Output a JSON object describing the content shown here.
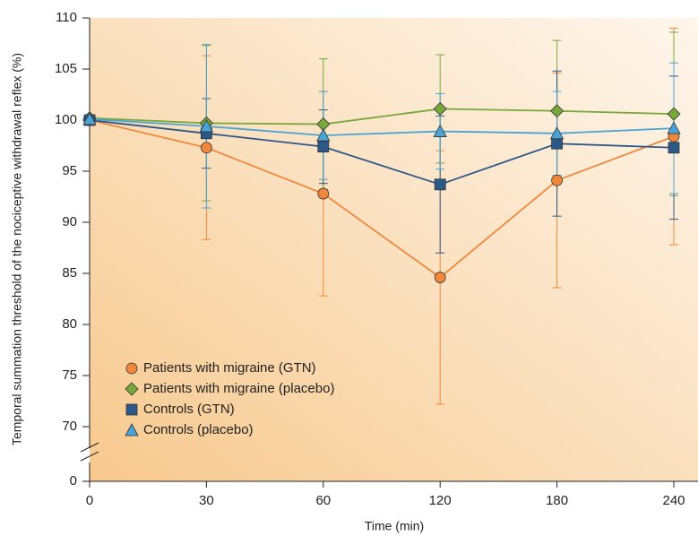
{
  "chart_data": {
    "type": "line",
    "categories": [
      0,
      30,
      60,
      120,
      180,
      240
    ],
    "x_label": "Time (min)",
    "y_label": "Temporal summation threshold of the nociceptive withdrawal reflex (%)",
    "ylim": [
      0,
      110
    ],
    "ybreak": [
      0,
      70
    ],
    "yticks": [
      0,
      70,
      75,
      80,
      85,
      90,
      95,
      100,
      105,
      110
    ],
    "legend": "lower left",
    "series": [
      {
        "name": "Patients with migraine (GTN)",
        "color": "#f0883c",
        "marker": "circle",
        "values": [
          100,
          97.3,
          92.8,
          84.6,
          94.1,
          98.4
        ],
        "errors": [
          0,
          9,
          10,
          12.4,
          10.5,
          10.6
        ]
      },
      {
        "name": "Patients with migraine (placebo)",
        "color": "#78a83a",
        "marker": "diamond",
        "values": [
          100.2,
          99.7,
          99.6,
          101.1,
          100.9,
          100.6
        ],
        "errors": [
          0,
          7.6,
          6.4,
          5.3,
          6.9,
          8
        ]
      },
      {
        "name": "Controls (GTN)",
        "color": "#2c5888",
        "marker": "square",
        "values": [
          100,
          98.7,
          97.4,
          93.7,
          97.7,
          97.3
        ],
        "errors": [
          0,
          3.4,
          3.6,
          6.7,
          7.1,
          7
        ]
      },
      {
        "name": "Controls (placebo)",
        "color": "#4aa3d6",
        "marker": "triangle",
        "values": [
          100.1,
          99.4,
          98.5,
          98.9,
          98.7,
          99.2
        ],
        "errors": [
          0,
          8,
          4.3,
          3.7,
          4.1,
          6.4
        ]
      }
    ]
  }
}
